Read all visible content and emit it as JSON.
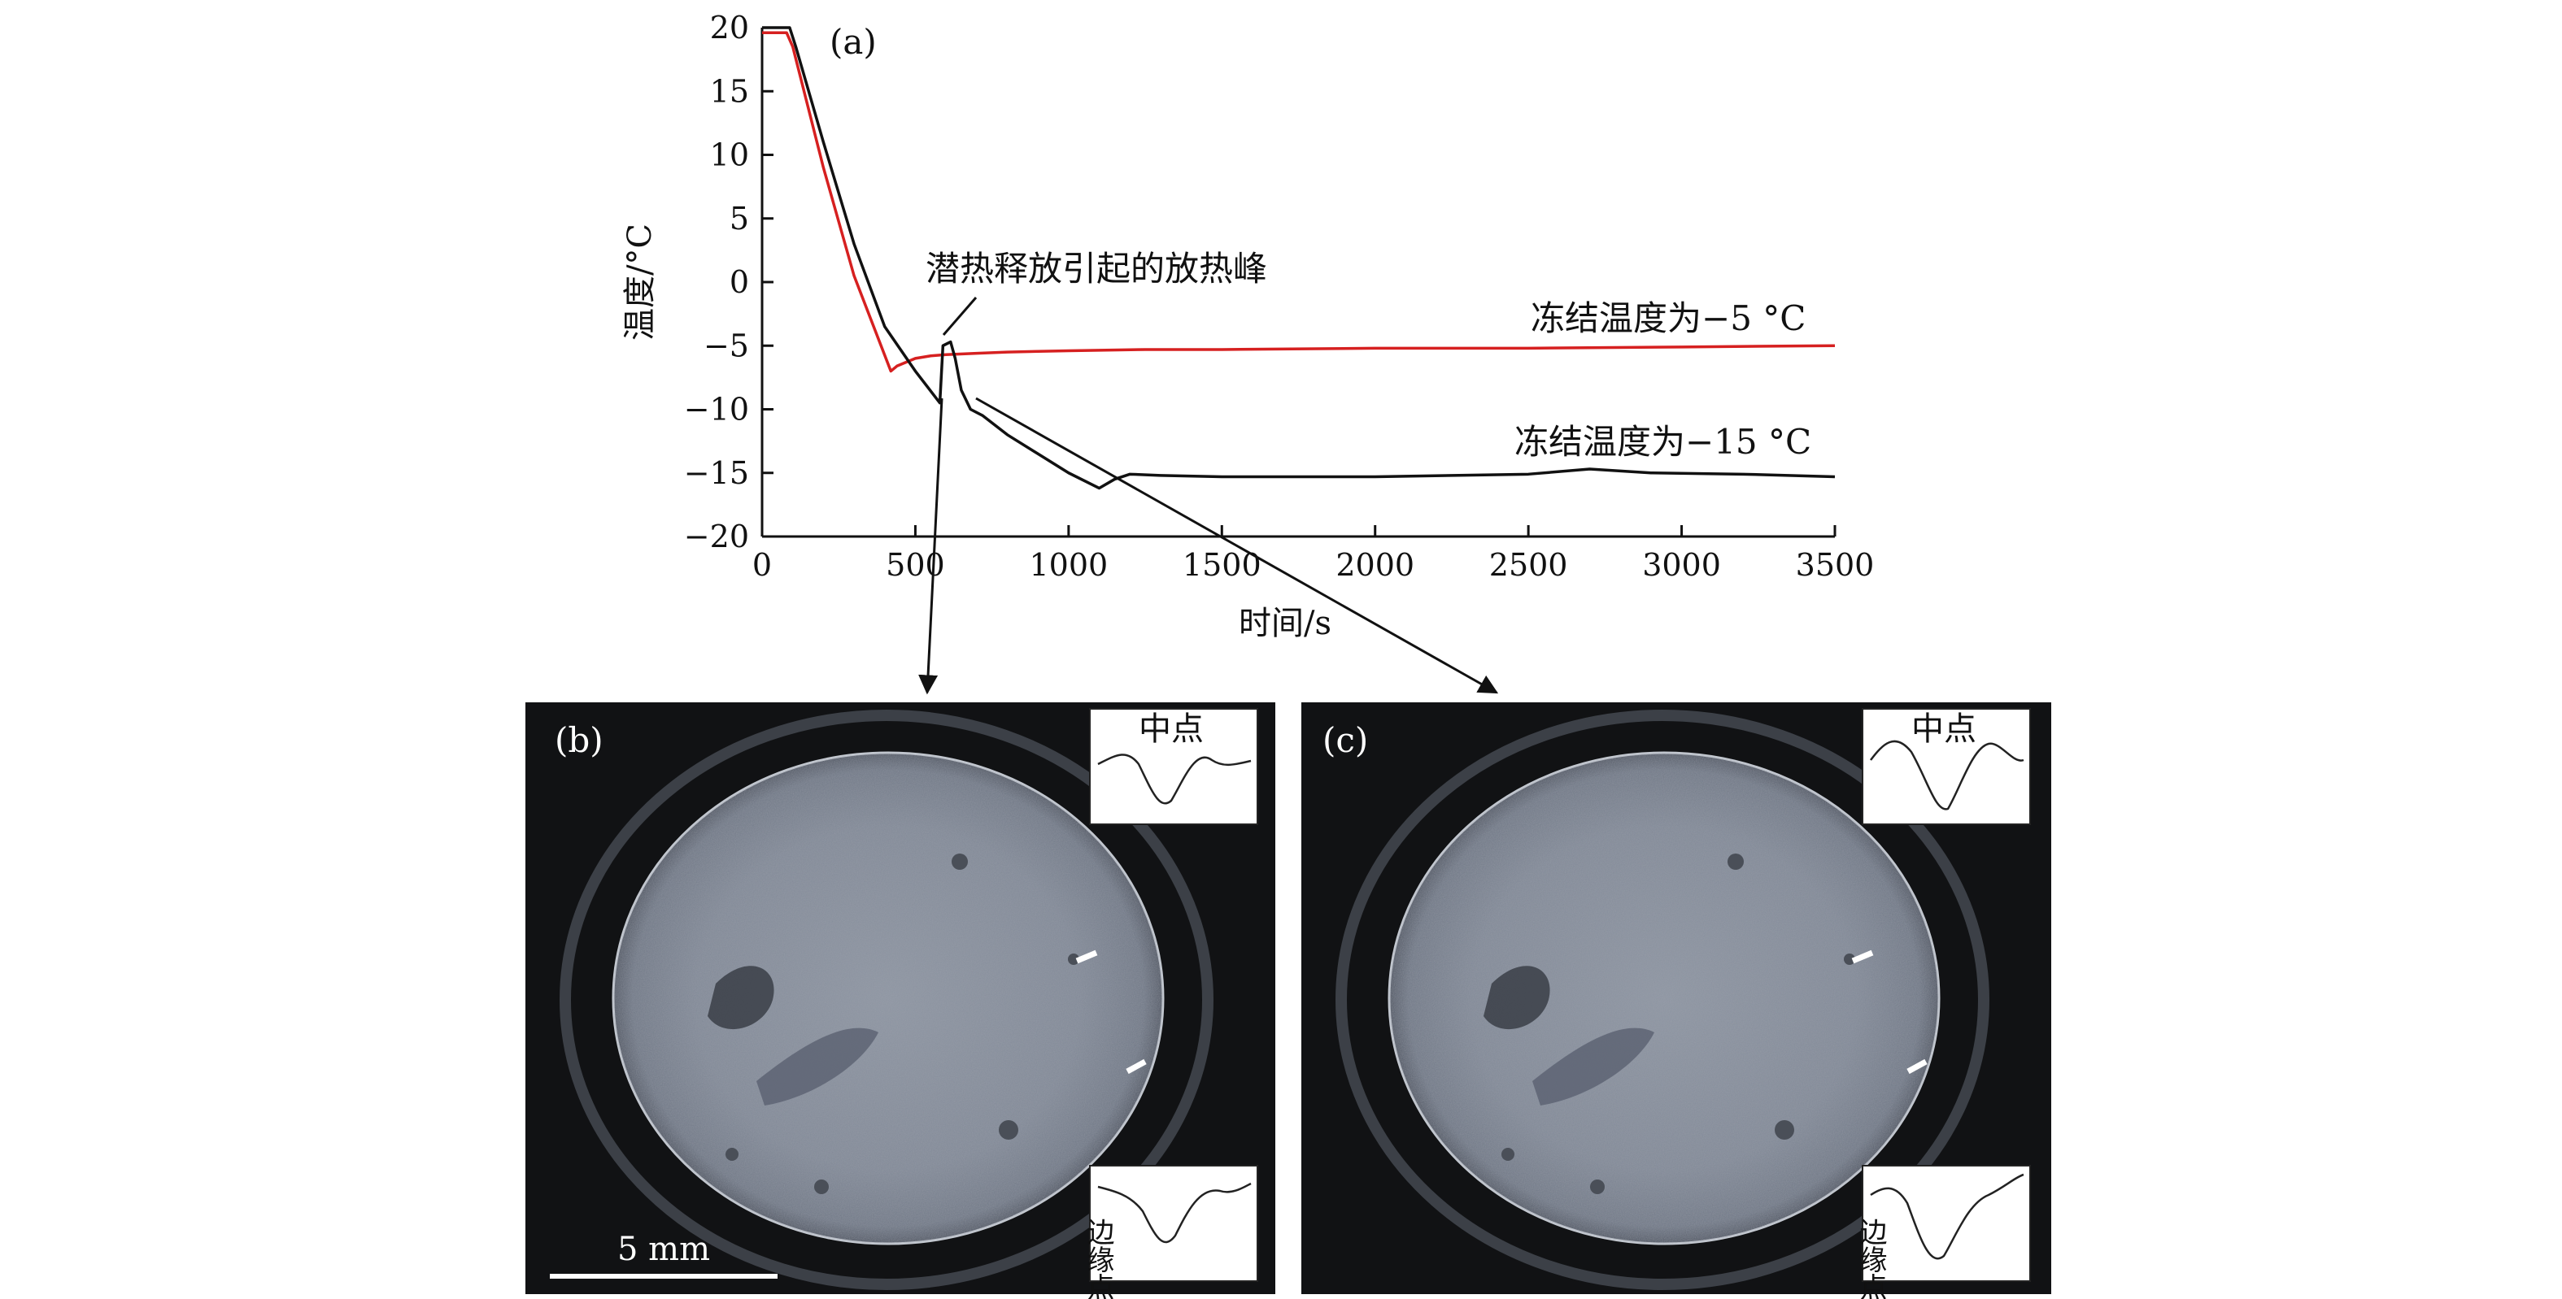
{
  "chart_data": [
    {
      "type": "line",
      "panel_label": "(a)",
      "xlabel": "时间/s",
      "ylabel": "温度/°C",
      "xlim": [
        0,
        3500
      ],
      "ylim": [
        -20,
        20
      ],
      "xticks": [
        0,
        500,
        1000,
        1500,
        2000,
        2500,
        3000,
        3500
      ],
      "yticks": [
        20,
        15,
        10,
        5,
        0,
        -5,
        -10,
        -15,
        -20
      ],
      "grid": false,
      "series": [
        {
          "name": "冻结温度为−5 °C",
          "color": "#d62020",
          "x": [
            0,
            80,
            100,
            200,
            300,
            420,
            440,
            500,
            550,
            600,
            700,
            800,
            1000,
            1250,
            1500,
            2000,
            2500,
            3000,
            3500
          ],
          "y": [
            19.6,
            19.6,
            18.5,
            9,
            0.5,
            -7,
            -6.6,
            -6,
            -5.8,
            -5.7,
            -5.6,
            -5.5,
            -5.4,
            -5.3,
            -5.3,
            -5.2,
            -5.2,
            -5.1,
            -5.0
          ]
        },
        {
          "name": "冻结温度为−15 °C",
          "color": "#111111",
          "x": [
            0,
            90,
            110,
            200,
            300,
            400,
            500,
            580,
            590,
            615,
            630,
            650,
            680,
            720,
            800,
            900,
            1000,
            1100,
            1150,
            1200,
            1300,
            1500,
            2000,
            2500,
            2700,
            2900,
            3200,
            3500
          ],
          "y": [
            20,
            20,
            18.5,
            11,
            3,
            -3.5,
            -7,
            -9.5,
            -5,
            -4.7,
            -6,
            -8.5,
            -10,
            -10.5,
            -12,
            -13.5,
            -15,
            -16.2,
            -15.5,
            -15.1,
            -15.2,
            -15.3,
            -15.3,
            -15.1,
            -14.7,
            -15,
            -15.1,
            -15.3
          ]
        }
      ],
      "annotations": [
        {
          "text": "潜热释放引起的放热峰"
        },
        {
          "text": "冻结温度为−5 °C"
        },
        {
          "text": "冻结温度为−15 °C"
        }
      ]
    }
  ],
  "panel_b": {
    "label": "(b)",
    "inset_top_label": "中点",
    "inset_bottom_label": "边缘点",
    "scale_bar_label": "5 mm"
  },
  "panel_c": {
    "label": "(c)",
    "inset_top_label": "中点",
    "inset_bottom_label": "边缘点"
  }
}
